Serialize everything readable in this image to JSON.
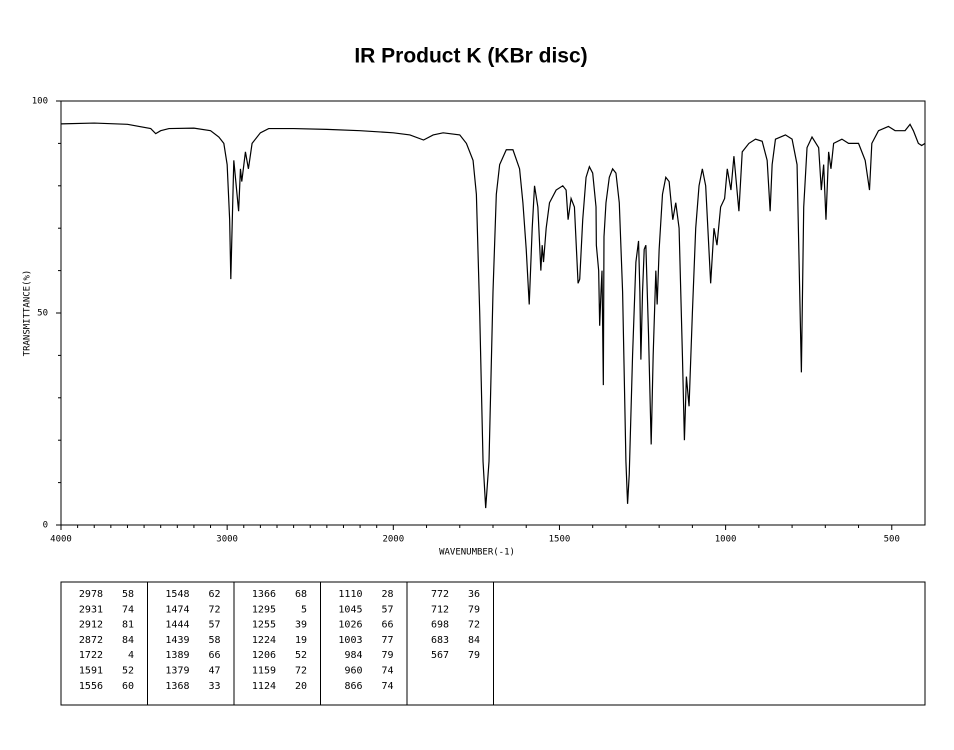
{
  "chart_data": {
    "type": "line",
    "title": "IR Product K (KBr disc)",
    "xlabel": "WAVENUMBER(-1)",
    "ylabel": "TRANSMITTANCE(%)",
    "color": "#000000",
    "xlim": [
      4000,
      400
    ],
    "ylim": [
      0,
      100
    ],
    "x_scale_change_at": 2000,
    "xticks": [
      4000,
      3000,
      2000,
      1500,
      1000,
      500
    ],
    "xminorticks": [
      3900,
      3800,
      3700,
      3600,
      3500,
      3400,
      3300,
      3200,
      3100,
      2900,
      2800,
      2700,
      2600,
      2500,
      2400,
      2300,
      2200,
      2100,
      1900,
      1800,
      1700,
      1600,
      1400,
      1300,
      1200,
      1100,
      900,
      800,
      700,
      600
    ],
    "yticks": [
      0,
      50,
      100
    ],
    "yminorticks": [
      10,
      20,
      30,
      40,
      60,
      70,
      80,
      90
    ],
    "x": [
      4000,
      3800,
      3600,
      3460,
      3430,
      3400,
      3350,
      3200,
      3100,
      3050,
      3020,
      3000,
      2985,
      2978,
      2960,
      2931,
      2920,
      2912,
      2890,
      2872,
      2850,
      2800,
      2750,
      2600,
      2400,
      2200,
      2000,
      1950,
      1909,
      1880,
      1850,
      1800,
      1780,
      1760,
      1750,
      1740,
      1730,
      1722,
      1712,
      1700,
      1690,
      1680,
      1660,
      1640,
      1620,
      1610,
      1600,
      1591,
      1582,
      1575,
      1565,
      1556,
      1552,
      1548,
      1540,
      1530,
      1510,
      1490,
      1480,
      1474,
      1465,
      1455,
      1444,
      1439,
      1430,
      1420,
      1410,
      1400,
      1390,
      1389,
      1382,
      1379,
      1375,
      1372,
      1368,
      1366,
      1360,
      1350,
      1340,
      1330,
      1320,
      1310,
      1300,
      1295,
      1290,
      1280,
      1270,
      1262,
      1258,
      1255,
      1250,
      1245,
      1240,
      1232,
      1224,
      1218,
      1210,
      1206,
      1200,
      1190,
      1180,
      1170,
      1159,
      1150,
      1140,
      1130,
      1124,
      1118,
      1110,
      1100,
      1090,
      1080,
      1070,
      1060,
      1045,
      1035,
      1026,
      1015,
      1003,
      995,
      984,
      975,
      960,
      950,
      930,
      910,
      890,
      875,
      866,
      860,
      850,
      820,
      800,
      785,
      772,
      765,
      755,
      740,
      720,
      712,
      705,
      698,
      690,
      683,
      675,
      650,
      630,
      600,
      590,
      580,
      567,
      560,
      540,
      510,
      490,
      460,
      445,
      435,
      420,
      410,
      400
    ],
    "values": [
      94.6,
      94.8,
      94.5,
      93.5,
      92.3,
      93,
      93.5,
      93.6,
      93,
      91.5,
      90,
      85,
      72,
      58,
      86,
      74,
      84,
      81,
      88,
      84,
      90,
      92.5,
      93.5,
      93.5,
      93.3,
      93,
      92.5,
      92,
      90.8,
      92,
      92.5,
      92,
      90,
      86,
      78,
      50,
      15,
      4,
      15,
      55,
      78,
      85,
      88.5,
      88.5,
      84,
      76,
      65,
      52,
      70,
      80,
      75,
      60,
      66,
      62,
      70,
      76,
      79,
      80,
      79,
      72,
      77,
      75,
      57,
      58,
      72,
      82,
      84.5,
      83,
      75,
      66,
      60,
      47,
      55,
      60,
      33,
      68,
      76,
      82,
      84,
      83,
      76,
      55,
      15,
      5,
      12,
      40,
      62,
      67,
      55,
      39,
      55,
      65,
      66,
      45,
      19,
      40,
      60,
      52,
      65,
      78,
      82,
      81,
      72,
      76,
      70,
      40,
      20,
      35,
      28,
      50,
      70,
      80,
      84,
      80,
      57,
      70,
      66,
      75,
      77,
      84,
      79,
      87,
      74,
      88,
      90,
      91,
      90.5,
      86,
      74,
      85,
      91,
      92,
      91,
      85,
      36,
      75,
      89,
      91.5,
      89,
      79,
      85,
      72,
      88,
      84,
      90,
      91,
      90,
      90,
      88,
      86,
      79,
      90,
      93,
      94,
      93,
      93,
      94.5,
      93,
      90,
      89.5,
      90
    ]
  },
  "peak_table": {
    "columns": [
      [
        [
          2978,
          58
        ],
        [
          2931,
          74
        ],
        [
          2912,
          81
        ],
        [
          2872,
          84
        ],
        [
          1722,
          4
        ],
        [
          1591,
          52
        ],
        [
          1556,
          60
        ]
      ],
      [
        [
          1548,
          62
        ],
        [
          1474,
          72
        ],
        [
          1444,
          57
        ],
        [
          1439,
          58
        ],
        [
          1389,
          66
        ],
        [
          1379,
          47
        ],
        [
          1368,
          33
        ]
      ],
      [
        [
          1366,
          68
        ],
        [
          1295,
          5
        ],
        [
          1255,
          39
        ],
        [
          1224,
          19
        ],
        [
          1206,
          52
        ],
        [
          1159,
          72
        ],
        [
          1124,
          20
        ]
      ],
      [
        [
          1110,
          28
        ],
        [
          1045,
          57
        ],
        [
          1026,
          66
        ],
        [
          1003,
          77
        ],
        [
          984,
          79
        ],
        [
          960,
          74
        ],
        [
          866,
          74
        ]
      ],
      [
        [
          772,
          36
        ],
        [
          712,
          79
        ],
        [
          698,
          72
        ],
        [
          683,
          84
        ],
        [
          567,
          79
        ]
      ]
    ]
  }
}
